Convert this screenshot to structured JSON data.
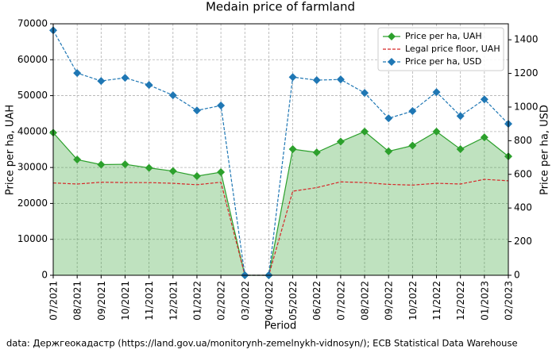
{
  "chart_data": {
    "type": "line",
    "title": "Medain price of farmland",
    "x_label": "Period",
    "y_label": "Price per ha, UAH",
    "y2_label": "Price per ha, USD",
    "source": "data: Держгеокадастр (https://land.gov.ua/monitorynh-zemelnykh-vidnosyn/); ECB Statistical Data Warehouse",
    "categories": [
      "07/2021",
      "08/2021",
      "09/2021",
      "10/2021",
      "11/2021",
      "12/2021",
      "01/2022",
      "02/2022",
      "03/2022",
      "04/2022",
      "05/2022",
      "06/2022",
      "07/2022",
      "08/2022",
      "09/2022",
      "10/2022",
      "11/2022",
      "12/2022",
      "01/2023",
      "02/2023"
    ],
    "series": [
      {
        "name": "Price per ha, UAH",
        "color": "#2ca02c",
        "marker": "diamond",
        "linestyle": "solid",
        "fill": true,
        "axis": "y",
        "values": [
          39700,
          32200,
          30800,
          30900,
          29900,
          29000,
          27600,
          28700,
          0,
          0,
          35100,
          34200,
          37200,
          40000,
          34500,
          36100,
          40000,
          35100,
          38400,
          33100
        ]
      },
      {
        "name": "Legal price floor, UAH",
        "color": "#d62728",
        "marker": null,
        "linestyle": "dashed",
        "fill": false,
        "axis": "y",
        "values": [
          25700,
          25400,
          25900,
          25800,
          25800,
          25600,
          25200,
          25900,
          0,
          0,
          23400,
          24400,
          26000,
          25800,
          25300,
          25100,
          25600,
          25400,
          26700,
          26300
        ]
      },
      {
        "name": "Price per ha, USD",
        "color": "#1f77b4",
        "marker": "diamond",
        "linestyle": "dashed",
        "fill": false,
        "axis": "y2",
        "values": [
          1456,
          1202,
          1155,
          1174,
          1131,
          1070,
          980,
          1009,
          0,
          0,
          1178,
          1160,
          1164,
          1084,
          933,
          976,
          1089,
          947,
          1046,
          900
        ]
      }
    ],
    "ylim": [
      0,
      70000
    ],
    "yticks": [
      0,
      10000,
      20000,
      30000,
      40000,
      50000,
      60000,
      70000
    ],
    "y2lim": [
      0,
      1495
    ],
    "y2ticks": [
      0,
      200,
      400,
      600,
      800,
      1000,
      1200,
      1400
    ],
    "grid": true,
    "legend": "upper right"
  }
}
